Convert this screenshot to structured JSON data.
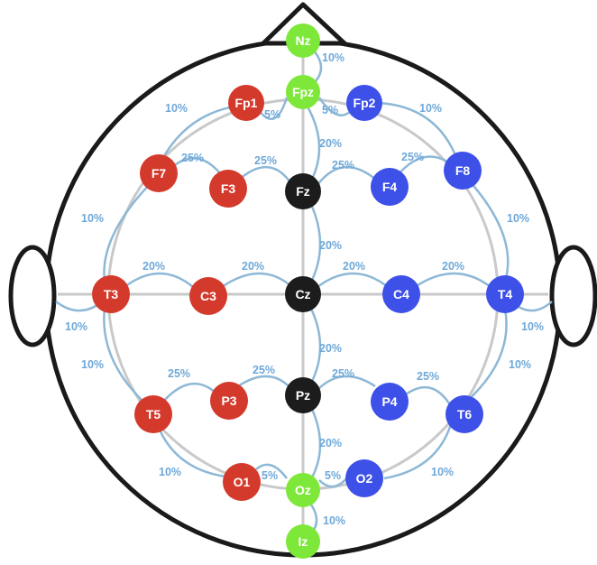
{
  "colors": {
    "left": "#d43a2c",
    "right": "#3d50e8",
    "midline": "#1c1c1c",
    "reference": "#7ee83a",
    "measure": "#8db8d6",
    "grid": "#c9c9c9",
    "outline": "#1a1a1a"
  },
  "electrodes": [
    {
      "id": "Nz",
      "label": "Nz",
      "group": "reference"
    },
    {
      "id": "Fpz",
      "label": "Fpz",
      "group": "reference"
    },
    {
      "id": "Fp1",
      "label": "Fp1",
      "group": "left"
    },
    {
      "id": "Fp2",
      "label": "Fp2",
      "group": "right"
    },
    {
      "id": "F7",
      "label": "F7",
      "group": "left"
    },
    {
      "id": "F3",
      "label": "F3",
      "group": "left"
    },
    {
      "id": "Fz",
      "label": "Fz",
      "group": "midline"
    },
    {
      "id": "F4",
      "label": "F4",
      "group": "right"
    },
    {
      "id": "F8",
      "label": "F8",
      "group": "right"
    },
    {
      "id": "T3",
      "label": "T3",
      "group": "left"
    },
    {
      "id": "C3",
      "label": "C3",
      "group": "left"
    },
    {
      "id": "Cz",
      "label": "Cz",
      "group": "midline"
    },
    {
      "id": "C4",
      "label": "C4",
      "group": "right"
    },
    {
      "id": "T4",
      "label": "T4",
      "group": "right"
    },
    {
      "id": "T5",
      "label": "T5",
      "group": "left"
    },
    {
      "id": "P3",
      "label": "P3",
      "group": "left"
    },
    {
      "id": "Pz",
      "label": "Pz",
      "group": "midline"
    },
    {
      "id": "P4",
      "label": "P4",
      "group": "right"
    },
    {
      "id": "T6",
      "label": "T6",
      "group": "right"
    },
    {
      "id": "O1",
      "label": "O1",
      "group": "left"
    },
    {
      "id": "Oz",
      "label": "Oz",
      "group": "reference"
    },
    {
      "id": "O2",
      "label": "O2",
      "group": "right"
    },
    {
      "id": "Iz",
      "label": "Iz",
      "group": "reference"
    }
  ],
  "spacings": [
    {
      "id": "nz-fpz",
      "text": "10%"
    },
    {
      "id": "fpz-fp1",
      "text": "5%"
    },
    {
      "id": "fpz-fp2",
      "text": "5%"
    },
    {
      "id": "fp1-f7",
      "text": "10%"
    },
    {
      "id": "fp2-f8",
      "text": "10%"
    },
    {
      "id": "fpz-fz",
      "text": "20%"
    },
    {
      "id": "f7-f3",
      "text": "25%"
    },
    {
      "id": "f3-fz",
      "text": "25%"
    },
    {
      "id": "fz-f4",
      "text": "25%"
    },
    {
      "id": "f4-f8",
      "text": "25%"
    },
    {
      "id": "f7-t3",
      "text": "10%"
    },
    {
      "id": "f8-t4",
      "text": "10%"
    },
    {
      "id": "fz-cz",
      "text": "20%"
    },
    {
      "id": "t3-c3",
      "text": "20%"
    },
    {
      "id": "c3-cz",
      "text": "20%"
    },
    {
      "id": "cz-c4",
      "text": "20%"
    },
    {
      "id": "c4-t4",
      "text": "20%"
    },
    {
      "id": "t3-ear",
      "text": "10%"
    },
    {
      "id": "t4-ear",
      "text": "10%"
    },
    {
      "id": "cz-pz",
      "text": "20%"
    },
    {
      "id": "t3-t5",
      "text": "10%"
    },
    {
      "id": "t4-t6",
      "text": "10%"
    },
    {
      "id": "t5-p3",
      "text": "25%"
    },
    {
      "id": "p3-pz",
      "text": "25%"
    },
    {
      "id": "pz-p4",
      "text": "25%"
    },
    {
      "id": "p4-t6",
      "text": "25%"
    },
    {
      "id": "pz-oz",
      "text": "20%"
    },
    {
      "id": "t5-o1",
      "text": "10%"
    },
    {
      "id": "t6-o2",
      "text": "10%"
    },
    {
      "id": "o1-oz",
      "text": "5%"
    },
    {
      "id": "oz-o2",
      "text": "5%"
    },
    {
      "id": "oz-iz",
      "text": "10%"
    }
  ]
}
